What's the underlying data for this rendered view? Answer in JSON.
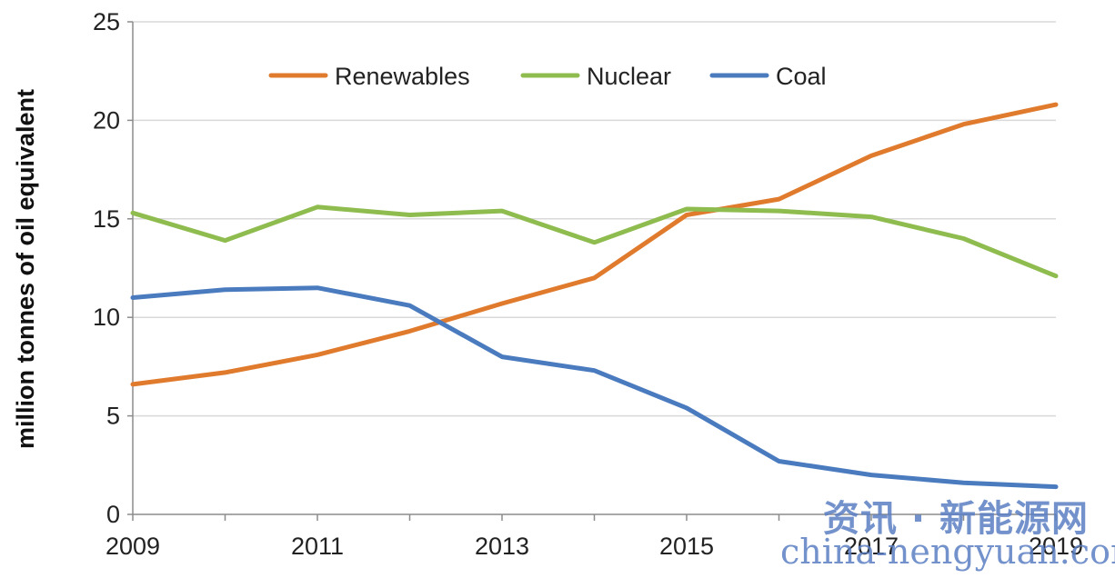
{
  "chart_data": {
    "type": "line",
    "title": "",
    "xlabel": "",
    "ylabel": "million tonnes of oil equivalent",
    "x": [
      2009,
      2010,
      2011,
      2012,
      2013,
      2014,
      2015,
      2016,
      2017,
      2018,
      2019
    ],
    "x_tick_labels": [
      "2009",
      "2011",
      "2013",
      "2015",
      "2017",
      "2019"
    ],
    "y_tick_labels": [
      "0",
      "5",
      "10",
      "15",
      "20",
      "25"
    ],
    "ylim": [
      0,
      25
    ],
    "xlim": [
      2009,
      2019
    ],
    "grid": "horizontal",
    "legend_position": "top-center",
    "series": [
      {
        "name": "Renewables",
        "color": "#e07b2e",
        "values": [
          6.6,
          7.2,
          8.1,
          9.3,
          10.7,
          12.0,
          15.2,
          16.0,
          18.2,
          19.8,
          20.8
        ]
      },
      {
        "name": "Nuclear",
        "color": "#8fbc4f",
        "values": [
          15.3,
          13.9,
          15.6,
          15.2,
          15.4,
          13.8,
          15.5,
          15.4,
          15.1,
          14.0,
          12.1
        ]
      },
      {
        "name": "Coal",
        "color": "#4a7bbf",
        "values": [
          11.0,
          11.4,
          11.5,
          10.6,
          8.0,
          7.3,
          5.4,
          2.7,
          2.0,
          1.6,
          1.4
        ]
      }
    ]
  },
  "watermark": {
    "cn": "资讯 · 新能源网",
    "en": "china-nengyuan.com"
  }
}
